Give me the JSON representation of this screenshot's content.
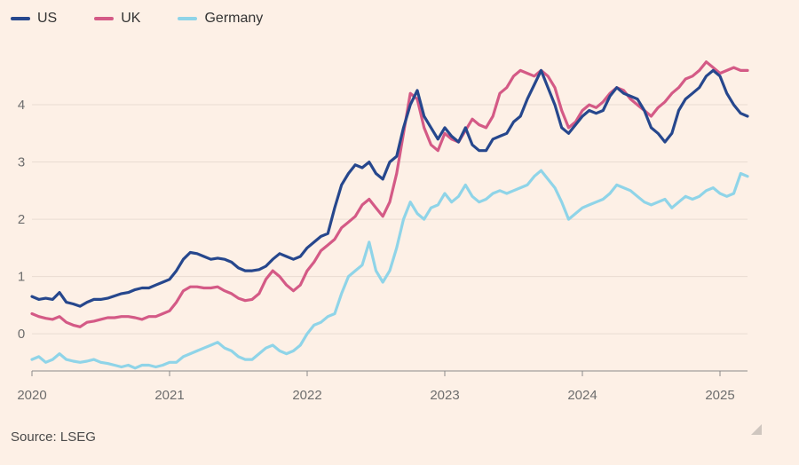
{
  "legend": {
    "us": "US",
    "uk": "UK",
    "germany": "Germany"
  },
  "source": "Source: LSEG",
  "colors": {
    "us": "#26478d",
    "uk": "#d45a86",
    "germany": "#8fd4e8",
    "grid": "#e9dcd2",
    "axis": "#6d6d6d",
    "background": "#fdf0e6"
  },
  "chart_data": {
    "type": "line",
    "title": "",
    "xlabel": "",
    "ylabel": "",
    "xlim": [
      2020.0,
      2025.2
    ],
    "ylim": [
      -0.65,
      4.9
    ],
    "x_ticks": [
      2020,
      2021,
      2022,
      2023,
      2024,
      2025
    ],
    "x_tick_labels": [
      "2020",
      "2021",
      "2022",
      "2023",
      "2024",
      "2025"
    ],
    "y_ticks": [
      0,
      1,
      2,
      3,
      4
    ],
    "y_tick_labels": [
      "0",
      "1",
      "2",
      "3",
      "4"
    ],
    "grid": true,
    "series": [
      {
        "name": "US",
        "key": "us",
        "x": [
          2020.0,
          2020.05,
          2020.1,
          2020.15,
          2020.2,
          2020.25,
          2020.3,
          2020.35,
          2020.4,
          2020.45,
          2020.5,
          2020.55,
          2020.6,
          2020.65,
          2020.7,
          2020.75,
          2020.8,
          2020.85,
          2020.9,
          2020.95,
          2021.0,
          2021.05,
          2021.1,
          2021.15,
          2021.2,
          2021.25,
          2021.3,
          2021.35,
          2021.4,
          2021.45,
          2021.5,
          2021.55,
          2021.6,
          2021.65,
          2021.7,
          2021.75,
          2021.8,
          2021.85,
          2021.9,
          2021.95,
          2022.0,
          2022.05,
          2022.1,
          2022.15,
          2022.2,
          2022.25,
          2022.3,
          2022.35,
          2022.4,
          2022.45,
          2022.5,
          2022.55,
          2022.6,
          2022.65,
          2022.7,
          2022.75,
          2022.8,
          2022.85,
          2022.9,
          2022.95,
          2023.0,
          2023.05,
          2023.1,
          2023.15,
          2023.2,
          2023.25,
          2023.3,
          2023.35,
          2023.4,
          2023.45,
          2023.5,
          2023.55,
          2023.6,
          2023.65,
          2023.7,
          2023.75,
          2023.8,
          2023.85,
          2023.9,
          2023.95,
          2024.0,
          2024.05,
          2024.1,
          2024.15,
          2024.2,
          2024.25,
          2024.3,
          2024.35,
          2024.4,
          2024.45,
          2024.5,
          2024.55,
          2024.6,
          2024.65,
          2024.7,
          2024.75,
          2024.8,
          2024.85,
          2024.9,
          2024.95,
          2025.0,
          2025.05,
          2025.1,
          2025.15,
          2025.2
        ],
        "values": [
          0.65,
          0.6,
          0.62,
          0.6,
          0.72,
          0.55,
          0.52,
          0.48,
          0.55,
          0.6,
          0.6,
          0.62,
          0.66,
          0.7,
          0.72,
          0.77,
          0.8,
          0.8,
          0.85,
          0.9,
          0.95,
          1.1,
          1.3,
          1.42,
          1.4,
          1.35,
          1.3,
          1.32,
          1.3,
          1.25,
          1.15,
          1.1,
          1.1,
          1.12,
          1.18,
          1.3,
          1.4,
          1.35,
          1.3,
          1.35,
          1.5,
          1.6,
          1.7,
          1.75,
          2.2,
          2.6,
          2.8,
          2.95,
          2.9,
          3.0,
          2.8,
          2.7,
          3.0,
          3.1,
          3.6,
          4.0,
          4.25,
          3.8,
          3.6,
          3.4,
          3.6,
          3.45,
          3.35,
          3.6,
          3.3,
          3.2,
          3.2,
          3.4,
          3.45,
          3.5,
          3.7,
          3.8,
          4.1,
          4.35,
          4.6,
          4.3,
          4.0,
          3.6,
          3.5,
          3.65,
          3.8,
          3.9,
          3.85,
          3.9,
          4.15,
          4.3,
          4.2,
          4.15,
          4.1,
          3.9,
          3.6,
          3.5,
          3.35,
          3.5,
          3.9,
          4.1,
          4.2,
          4.3,
          4.5,
          4.6,
          4.5,
          4.2,
          4.0,
          3.85,
          3.8
        ]
      },
      {
        "name": "UK",
        "key": "uk",
        "x": [
          2020.0,
          2020.05,
          2020.1,
          2020.15,
          2020.2,
          2020.25,
          2020.3,
          2020.35,
          2020.4,
          2020.45,
          2020.5,
          2020.55,
          2020.6,
          2020.65,
          2020.7,
          2020.75,
          2020.8,
          2020.85,
          2020.9,
          2020.95,
          2021.0,
          2021.05,
          2021.1,
          2021.15,
          2021.2,
          2021.25,
          2021.3,
          2021.35,
          2021.4,
          2021.45,
          2021.5,
          2021.55,
          2021.6,
          2021.65,
          2021.7,
          2021.75,
          2021.8,
          2021.85,
          2021.9,
          2021.95,
          2022.0,
          2022.05,
          2022.1,
          2022.15,
          2022.2,
          2022.25,
          2022.3,
          2022.35,
          2022.4,
          2022.45,
          2022.5,
          2022.55,
          2022.6,
          2022.65,
          2022.7,
          2022.75,
          2022.8,
          2022.85,
          2022.9,
          2022.95,
          2023.0,
          2023.05,
          2023.1,
          2023.15,
          2023.2,
          2023.25,
          2023.3,
          2023.35,
          2023.4,
          2023.45,
          2023.5,
          2023.55,
          2023.6,
          2023.65,
          2023.7,
          2023.75,
          2023.8,
          2023.85,
          2023.9,
          2023.95,
          2024.0,
          2024.05,
          2024.1,
          2024.15,
          2024.2,
          2024.25,
          2024.3,
          2024.35,
          2024.4,
          2024.45,
          2024.5,
          2024.55,
          2024.6,
          2024.65,
          2024.7,
          2024.75,
          2024.8,
          2024.85,
          2024.9,
          2024.95,
          2025.0,
          2025.05,
          2025.1,
          2025.15,
          2025.2
        ],
        "values": [
          0.35,
          0.3,
          0.27,
          0.25,
          0.3,
          0.2,
          0.15,
          0.12,
          0.2,
          0.22,
          0.25,
          0.28,
          0.28,
          0.3,
          0.3,
          0.28,
          0.25,
          0.3,
          0.3,
          0.35,
          0.4,
          0.55,
          0.75,
          0.82,
          0.82,
          0.8,
          0.8,
          0.82,
          0.75,
          0.7,
          0.62,
          0.58,
          0.6,
          0.7,
          0.95,
          1.1,
          1.0,
          0.85,
          0.75,
          0.85,
          1.1,
          1.25,
          1.45,
          1.55,
          1.65,
          1.85,
          1.95,
          2.05,
          2.25,
          2.35,
          2.2,
          2.05,
          2.3,
          2.8,
          3.5,
          4.2,
          4.1,
          3.6,
          3.3,
          3.2,
          3.5,
          3.4,
          3.35,
          3.55,
          3.75,
          3.65,
          3.6,
          3.8,
          4.2,
          4.3,
          4.5,
          4.6,
          4.55,
          4.5,
          4.6,
          4.5,
          4.3,
          3.9,
          3.6,
          3.7,
          3.9,
          4.0,
          3.95,
          4.05,
          4.2,
          4.3,
          4.25,
          4.1,
          4.0,
          3.9,
          3.8,
          3.95,
          4.05,
          4.2,
          4.3,
          4.45,
          4.5,
          4.6,
          4.75,
          4.65,
          4.55,
          4.6,
          4.65,
          4.6,
          4.6
        ]
      },
      {
        "name": "Germany",
        "key": "germany",
        "x": [
          2020.0,
          2020.05,
          2020.1,
          2020.15,
          2020.2,
          2020.25,
          2020.3,
          2020.35,
          2020.4,
          2020.45,
          2020.5,
          2020.55,
          2020.6,
          2020.65,
          2020.7,
          2020.75,
          2020.8,
          2020.85,
          2020.9,
          2020.95,
          2021.0,
          2021.05,
          2021.1,
          2021.15,
          2021.2,
          2021.25,
          2021.3,
          2021.35,
          2021.4,
          2021.45,
          2021.5,
          2021.55,
          2021.6,
          2021.65,
          2021.7,
          2021.75,
          2021.8,
          2021.85,
          2021.9,
          2021.95,
          2022.0,
          2022.05,
          2022.1,
          2022.15,
          2022.2,
          2022.25,
          2022.3,
          2022.35,
          2022.4,
          2022.45,
          2022.5,
          2022.55,
          2022.6,
          2022.65,
          2022.7,
          2022.75,
          2022.8,
          2022.85,
          2022.9,
          2022.95,
          2023.0,
          2023.05,
          2023.1,
          2023.15,
          2023.2,
          2023.25,
          2023.3,
          2023.35,
          2023.4,
          2023.45,
          2023.5,
          2023.55,
          2023.6,
          2023.65,
          2023.7,
          2023.75,
          2023.8,
          2023.85,
          2023.9,
          2023.95,
          2024.0,
          2024.05,
          2024.1,
          2024.15,
          2024.2,
          2024.25,
          2024.3,
          2024.35,
          2024.4,
          2024.45,
          2024.5,
          2024.55,
          2024.6,
          2024.65,
          2024.7,
          2024.75,
          2024.8,
          2024.85,
          2024.9,
          2024.95,
          2025.0,
          2025.05,
          2025.1,
          2025.15,
          2025.2
        ],
        "values": [
          -0.45,
          -0.4,
          -0.5,
          -0.45,
          -0.35,
          -0.45,
          -0.48,
          -0.5,
          -0.48,
          -0.45,
          -0.5,
          -0.52,
          -0.55,
          -0.58,
          -0.55,
          -0.6,
          -0.55,
          -0.55,
          -0.58,
          -0.55,
          -0.5,
          -0.5,
          -0.4,
          -0.35,
          -0.3,
          -0.25,
          -0.2,
          -0.15,
          -0.25,
          -0.3,
          -0.4,
          -0.45,
          -0.45,
          -0.35,
          -0.25,
          -0.2,
          -0.3,
          -0.35,
          -0.3,
          -0.2,
          0.0,
          0.15,
          0.2,
          0.3,
          0.35,
          0.7,
          1.0,
          1.1,
          1.2,
          1.6,
          1.1,
          0.9,
          1.1,
          1.5,
          2.0,
          2.3,
          2.1,
          2.0,
          2.2,
          2.25,
          2.45,
          2.3,
          2.4,
          2.6,
          2.4,
          2.3,
          2.35,
          2.45,
          2.5,
          2.45,
          2.5,
          2.55,
          2.6,
          2.75,
          2.85,
          2.7,
          2.55,
          2.3,
          2.0,
          2.1,
          2.2,
          2.25,
          2.3,
          2.35,
          2.45,
          2.6,
          2.55,
          2.5,
          2.4,
          2.3,
          2.25,
          2.3,
          2.35,
          2.2,
          2.3,
          2.4,
          2.35,
          2.4,
          2.5,
          2.55,
          2.45,
          2.4,
          2.45,
          2.8,
          2.75
        ]
      }
    ]
  }
}
